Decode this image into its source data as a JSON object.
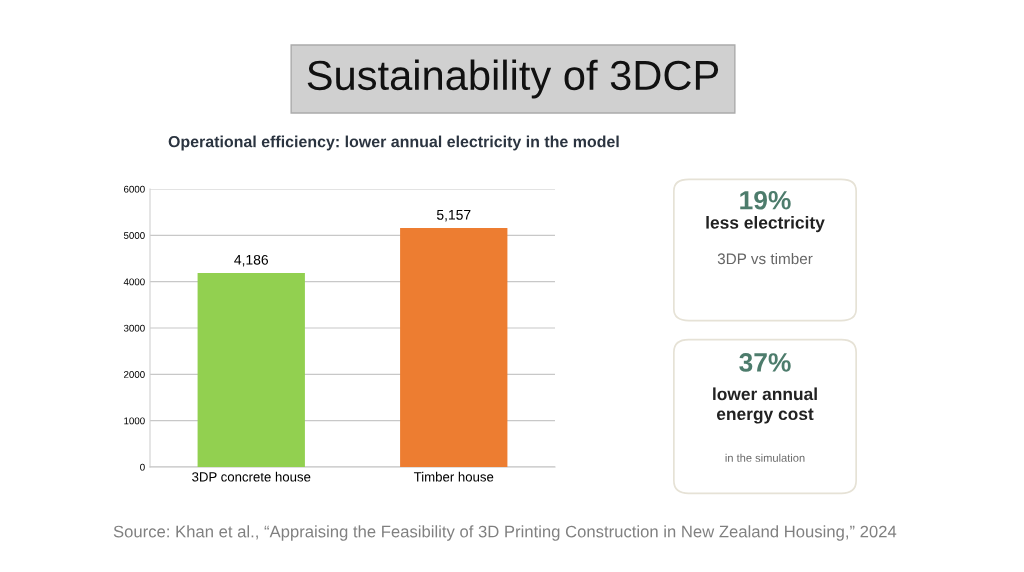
{
  "chart_data": [
    {
      "type": "bar",
      "title": "Sustainability of 3DCP",
      "subtitle": "Operational efficiency: lower annual electricity in the model",
      "categories": [
        "3DP concrete house",
        "Timber house"
      ],
      "values": [
        4186,
        5157
      ],
      "colors": [
        "#92d050",
        "#ed7d31"
      ],
      "value_labels": [
        "4,186",
        "5,157"
      ],
      "ylim": [
        0,
        6000
      ],
      "yticks": [
        0,
        1000,
        2000,
        3000,
        4000,
        5000,
        6000
      ],
      "grid": "y",
      "annotations": [
        "Source: Khan et al., “Appraising the Feasibility of 3D Printing Construction in New Zealand Housing,” 2024"
      ]
    },
    {
      "type": "other",
      "title": "19%",
      "subtitle": "less electricity",
      "annotations": [
        "3DP vs timber"
      ]
    },
    {
      "type": "other",
      "title": "37%",
      "subtitle": "lower annual\nenergy cost",
      "annotations": [
        "in the simulation"
      ]
    }
  ]
}
